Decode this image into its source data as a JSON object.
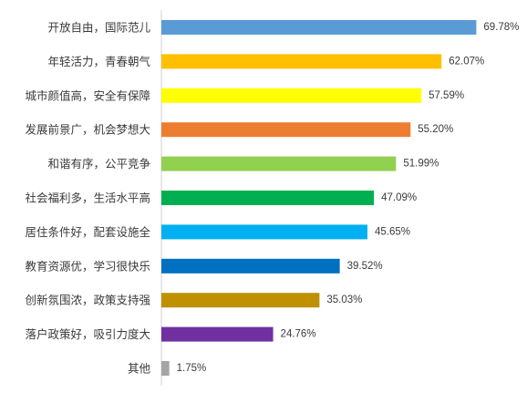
{
  "chart_data": {
    "type": "bar",
    "orientation": "horizontal",
    "title": "",
    "xlabel": "",
    "ylabel": "",
    "grid": false,
    "legend": "none",
    "axis_line": "left",
    "categories": [
      "开放自由，国际范儿",
      "年轻活力，青春朝气",
      "城市颜值高，安全有保障",
      "发展前景广，机会梦想大",
      "和谐有序，公平竞争",
      "社会福利多，生活水平高",
      "居住条件好，配套设施全",
      "教育资源优，学习很快乐",
      "创新氛围浓，政策支持强",
      "落户政策好，吸引力度大",
      "其他"
    ],
    "values": [
      69.78,
      62.07,
      57.59,
      55.2,
      51.99,
      47.09,
      45.65,
      39.52,
      35.03,
      24.76,
      1.75
    ],
    "value_labels": [
      "69.78%",
      "62.07%",
      "57.59%",
      "55.20%",
      "51.99%",
      "47.09%",
      "45.65%",
      "39.52%",
      "35.03%",
      "24.76%",
      "1.75%"
    ],
    "colors": [
      "#5b9bd5",
      "#ffc000",
      "#ffff00",
      "#ed7d31",
      "#92d050",
      "#00b050",
      "#00b0f0",
      "#0070c0",
      "#bf9000",
      "#7030a0",
      "#a5a5a5"
    ],
    "xlim": [
      0,
      100
    ]
  }
}
